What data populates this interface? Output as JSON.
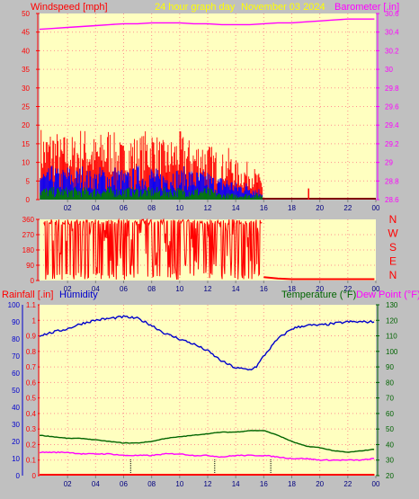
{
  "header": {
    "wind_label": "Windspeed [mph]",
    "title": "24 hour graph day",
    "date": "November 03 2024",
    "baro_label": "Barometer [.in]"
  },
  "lower_header": {
    "rain_label": "Rainfall [.in]",
    "humidity_label": "Humidity",
    "temp_label": "Temperature (°F)",
    "dew_label": "Dew Point (°F)"
  },
  "direction_labels": [
    "N",
    "W",
    "S",
    "E",
    "N"
  ],
  "colors": {
    "background": "#c0c0c0",
    "plot": "#ffffc0",
    "wind_gust": "#ff0000",
    "wind_avg": "#0000ff",
    "wind_low": "#008000",
    "barometer": "#ff00ff",
    "direction": "#ff0000",
    "humidity": "#0000cc",
    "temperature": "#006400",
    "dew_point": "#ff00ff",
    "rain": "#ff0000",
    "grid": "#ff9090",
    "title_text": "#ffff00"
  },
  "x_ticks": [
    "02",
    "04",
    "06",
    "08",
    "10",
    "12",
    "14",
    "16",
    "18",
    "20",
    "22",
    "00"
  ],
  "chart_data": [
    {
      "type": "area",
      "panel": "wind",
      "x_unit": "hour",
      "xlim": [
        0,
        24
      ],
      "y_ticks": [
        0,
        5,
        10,
        15,
        20,
        25,
        30,
        35,
        40,
        45,
        50
      ],
      "ylim": [
        0,
        50
      ],
      "y2_ticks": [
        "28.6",
        "28.8",
        "29",
        "29.2",
        "29.4",
        "29.6",
        "29.8",
        "30",
        "30.2",
        "30.4",
        "30.6"
      ],
      "y2lim": [
        28.6,
        30.6
      ],
      "series": [
        {
          "name": "Windspeed [mph]",
          "axis": "left",
          "style": "gust",
          "x": [
            0,
            0.5,
            1,
            1.5,
            2,
            2.5,
            3,
            3.5,
            4,
            4.5,
            5,
            5.5,
            6,
            6.5,
            7,
            7.5,
            8,
            8.5,
            9,
            9.5,
            10,
            10.5,
            11,
            11.5,
            12,
            12.5,
            13,
            13.5,
            14,
            14.5,
            15,
            15.5,
            15.9
          ],
          "values": [
            13,
            12,
            13,
            11,
            12,
            11,
            13,
            12,
            11,
            12,
            13,
            11,
            10,
            12,
            11,
            12,
            13,
            11,
            10,
            11,
            12,
            11,
            10,
            11,
            10,
            9,
            8,
            9,
            7,
            6,
            7,
            5,
            4
          ]
        },
        {
          "name": "Windspeed avg",
          "axis": "left",
          "style": "avg",
          "x": [
            0,
            0.5,
            1,
            1.5,
            2,
            2.5,
            3,
            3.5,
            4,
            4.5,
            5,
            5.5,
            6,
            6.5,
            7,
            7.5,
            8,
            8.5,
            9,
            9.5,
            10,
            10.5,
            11,
            11.5,
            12,
            12.5,
            13,
            13.5,
            14,
            14.5,
            15,
            15.5,
            15.9
          ],
          "values": [
            6,
            5,
            6,
            5,
            6,
            5,
            6,
            5,
            5,
            6,
            5,
            6,
            5,
            5,
            6,
            5,
            6,
            5,
            5,
            6,
            5,
            6,
            5,
            5,
            5,
            4,
            4,
            4,
            3,
            3,
            3,
            2,
            2
          ]
        },
        {
          "name": "Windspeed low",
          "axis": "left",
          "style": "low",
          "x": [
            0,
            1,
            2,
            3,
            4,
            5,
            6,
            7,
            8,
            9,
            10,
            11,
            12,
            13,
            14,
            15,
            15.9
          ],
          "values": [
            2,
            2,
            2,
            2,
            2,
            2,
            2,
            2,
            2,
            2,
            2,
            2,
            2,
            1,
            1,
            1,
            1
          ]
        },
        {
          "name": "Barometer [.in]",
          "axis": "right",
          "x": [
            0,
            1,
            2,
            3,
            4,
            5,
            6,
            7,
            8,
            9,
            10,
            11,
            12,
            13,
            14,
            15,
            16,
            17,
            18,
            19,
            20,
            21,
            22,
            23,
            23.9
          ],
          "values": [
            30.43,
            30.44,
            30.45,
            30.46,
            30.47,
            30.48,
            30.49,
            30.49,
            30.5,
            30.5,
            30.5,
            30.49,
            30.49,
            30.48,
            30.48,
            30.48,
            30.49,
            30.5,
            30.5,
            30.51,
            30.52,
            30.53,
            30.54,
            30.54,
            30.54
          ]
        }
      ],
      "point": {
        "x": 19.2,
        "value": 3
      }
    },
    {
      "type": "line",
      "panel": "direction",
      "x_unit": "hour",
      "xlim": [
        0,
        24
      ],
      "y_ticks": [
        0,
        90,
        180,
        270,
        360
      ],
      "ylim": [
        0,
        360
      ],
      "series": [
        {
          "name": "Wind direction",
          "x": [
            0.3,
            15.9
          ],
          "style": "oscillating",
          "values": [
            0,
            360
          ]
        },
        {
          "name": "Wind direction calm",
          "x": [
            16,
            17,
            18,
            19,
            20,
            21,
            22,
            23,
            23.9
          ],
          "values": [
            20,
            12,
            8,
            8,
            8,
            8,
            8,
            8,
            8
          ]
        }
      ]
    },
    {
      "type": "line",
      "panel": "climate",
      "x_unit": "hour",
      "xlim": [
        0,
        24
      ],
      "y_ticks": [
        0,
        10,
        20,
        30,
        40,
        50,
        60,
        70,
        80,
        90,
        100
      ],
      "ylim": [
        0,
        100
      ],
      "rain_ticks": [
        "0",
        "0.1",
        "0.2",
        "0.3",
        "0.4",
        "0.5",
        "0.6",
        "0.7",
        "0.8",
        "0.9",
        "1",
        "1.1"
      ],
      "rain_lim": [
        0,
        1.1
      ],
      "y2_ticks": [
        20,
        30,
        40,
        50,
        60,
        70,
        80,
        90,
        100,
        110,
        120,
        130
      ],
      "y2lim": [
        20,
        130
      ],
      "series": [
        {
          "name": "Humidity",
          "axis": "left",
          "x": [
            0,
            1,
            2,
            3,
            4,
            5,
            6,
            7,
            8,
            9,
            10,
            11,
            12,
            13,
            14,
            15,
            15.5,
            16,
            16.5,
            17,
            18,
            19,
            20,
            21,
            22,
            23,
            23.9
          ],
          "values": [
            82,
            84,
            86,
            89,
            91,
            92,
            93,
            92,
            88,
            83,
            80,
            77,
            73,
            67,
            63,
            62,
            64,
            70,
            75,
            80,
            86,
            88,
            88,
            89,
            90,
            90,
            90
          ]
        },
        {
          "name": "Temperature (°F)",
          "axis": "right",
          "x": [
            0,
            1,
            2,
            3,
            4,
            5,
            6,
            7,
            8,
            9,
            10,
            11,
            12,
            13,
            14,
            15,
            16,
            17,
            18,
            19,
            20,
            21,
            22,
            23,
            23.9
          ],
          "values": [
            46,
            45,
            44,
            44,
            43,
            42,
            41,
            41,
            42,
            44,
            45,
            46,
            47,
            48,
            48,
            49,
            49,
            46,
            42,
            39,
            38,
            36,
            35,
            36,
            37
          ]
        },
        {
          "name": "Dew Point (°F)",
          "axis": "right",
          "x": [
            0,
            1,
            2,
            3,
            4,
            5,
            6,
            7,
            8,
            9,
            10,
            11,
            12,
            13,
            14,
            15,
            16,
            17,
            18,
            19,
            20,
            21,
            22,
            23,
            23.9
          ],
          "values": [
            35,
            35,
            35,
            34,
            34,
            34,
            33,
            33,
            33,
            34,
            34,
            33,
            33,
            32,
            33,
            33,
            33,
            32,
            31,
            31,
            30,
            30,
            30,
            30,
            31
          ]
        },
        {
          "name": "Rainfall [.in]",
          "axis": "rain",
          "x": [
            0,
            23.9
          ],
          "values": [
            0,
            0
          ]
        }
      ],
      "markers": [
        6.5,
        12.5,
        16.5
      ]
    }
  ]
}
